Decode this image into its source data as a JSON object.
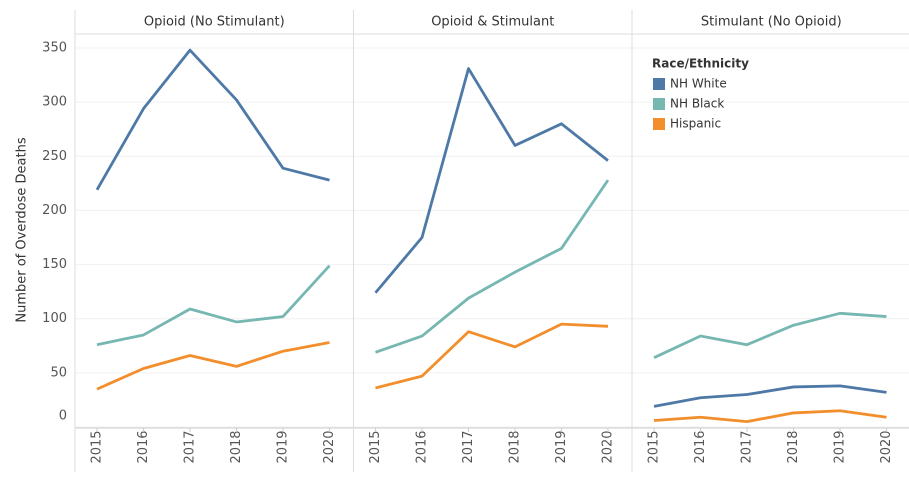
{
  "chart_data": [
    {
      "type": "line",
      "title": "Opioid (No Stimulant)",
      "y_label": "Number of Overdose Deaths",
      "categories": [
        "2015",
        "2016",
        "2017",
        "2018",
        "2019",
        "2020"
      ],
      "ylim": [
        0,
        362
      ],
      "yticks": [
        0,
        50,
        100,
        150,
        200,
        250,
        300,
        350
      ],
      "grid": true,
      "series": [
        {
          "name": "NH White",
          "color": "#4e79a7",
          "values": [
            219,
            294,
            348,
            302,
            239,
            228
          ]
        },
        {
          "name": "NH Black",
          "color": "#76b7b2",
          "values": [
            76,
            85,
            109,
            97,
            102,
            149
          ]
        },
        {
          "name": "Hispanic",
          "color": "#f28e2b",
          "values": [
            35,
            54,
            66,
            56,
            70,
            78
          ]
        }
      ]
    },
    {
      "type": "line",
      "title": "Opioid & Stimulant",
      "categories": [
        "2015",
        "2016",
        "2017",
        "2018",
        "2019",
        "2020"
      ],
      "ylim": [
        0,
        362
      ],
      "series": [
        {
          "name": "NH White",
          "color": "#4e79a7",
          "values": [
            124,
            175,
            331,
            260,
            280,
            246
          ]
        },
        {
          "name": "NH Black",
          "color": "#76b7b2",
          "values": [
            69,
            84,
            119,
            143,
            165,
            228
          ]
        },
        {
          "name": "Hispanic",
          "color": "#f28e2b",
          "values": [
            36,
            47,
            88,
            74,
            95,
            93
          ]
        }
      ]
    },
    {
      "type": "line",
      "title": "Stimulant (No Opioid)",
      "legend_title": "Race/Ethnicity",
      "categories": [
        "2015",
        "2016",
        "2017",
        "2018",
        "2019",
        "2020"
      ],
      "ylim": [
        0,
        362
      ],
      "series": [
        {
          "name": "NH White",
          "color": "#4e79a7",
          "values": [
            19,
            27,
            30,
            37,
            38,
            32
          ]
        },
        {
          "name": "NH Black",
          "color": "#76b7b2",
          "values": [
            64,
            84,
            76,
            94,
            105,
            102
          ]
        },
        {
          "name": "Hispanic",
          "color": "#f28e2b",
          "values": [
            6,
            9,
            5,
            13,
            15,
            9
          ]
        }
      ]
    }
  ]
}
